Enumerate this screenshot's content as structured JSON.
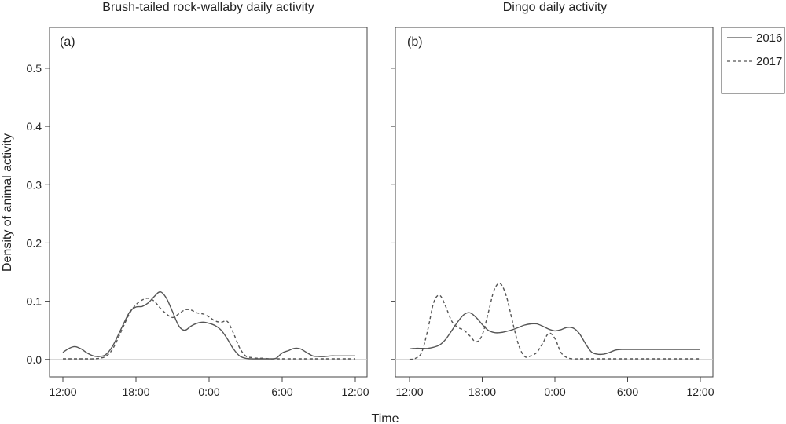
{
  "chart_data": [
    {
      "type": "line",
      "panel_tag": "(a)",
      "title": "Brush-tailed rock-wallaby daily activity",
      "xlabel": "Time",
      "ylabel": "Density of animal activity",
      "x_ticks": [
        "12:00",
        "18:00",
        "0:00",
        "6:00",
        "12:00"
      ],
      "y_ticks": [
        "0.0",
        "0.1",
        "0.2",
        "0.3",
        "0.4",
        "0.5"
      ],
      "xlim": [
        0,
        24
      ],
      "ylim": [
        -0.03,
        0.57
      ],
      "x": [
        0,
        0.5,
        1,
        1.5,
        2,
        2.5,
        3,
        3.5,
        4,
        4.5,
        5,
        5.5,
        6,
        6.5,
        7,
        7.5,
        8,
        8.5,
        9,
        9.5,
        10,
        10.5,
        11,
        11.5,
        12,
        12.5,
        13,
        13.5,
        14,
        14.5,
        15,
        15.5,
        16,
        16.5,
        17,
        17.5,
        18,
        18.5,
        19,
        19.5,
        20,
        20.5,
        21,
        21.5,
        22,
        22.5,
        23,
        23.5,
        24
      ],
      "series": [
        {
          "name": "2016",
          "style": "solid",
          "values": [
            0.012,
            0.019,
            0.022,
            0.018,
            0.011,
            0.006,
            0.005,
            0.008,
            0.02,
            0.04,
            0.062,
            0.082,
            0.09,
            0.091,
            0.097,
            0.108,
            0.116,
            0.105,
            0.082,
            0.058,
            0.05,
            0.057,
            0.062,
            0.064,
            0.062,
            0.058,
            0.05,
            0.035,
            0.018,
            0.006,
            0.002,
            0.001,
            0.001,
            0.001,
            0.001,
            0.002,
            0.011,
            0.015,
            0.019,
            0.018,
            0.012,
            0.006,
            0.005,
            0.005,
            0.006,
            0.006,
            0.006,
            0.006,
            0.006
          ]
        },
        {
          "name": "2017",
          "style": "dashed",
          "values": [
            0.001,
            0.001,
            0.001,
            0.001,
            0.001,
            0.001,
            0.002,
            0.005,
            0.015,
            0.035,
            0.058,
            0.08,
            0.094,
            0.102,
            0.105,
            0.1,
            0.088,
            0.078,
            0.072,
            0.078,
            0.085,
            0.085,
            0.08,
            0.078,
            0.073,
            0.066,
            0.064,
            0.065,
            0.045,
            0.02,
            0.006,
            0.003,
            0.002,
            0.002,
            0.001,
            0.001,
            0.001,
            0.001,
            0.001,
            0.001,
            0.001,
            0.001,
            0.001,
            0.001,
            0.001,
            0.001,
            0.001,
            0.001,
            0.001
          ]
        }
      ]
    },
    {
      "type": "line",
      "panel_tag": "(b)",
      "title": "Dingo daily activity",
      "xlabel": "Time",
      "ylabel": "",
      "x_ticks": [
        "12:00",
        "18:00",
        "0:00",
        "6:00",
        "12:00"
      ],
      "y_ticks": [],
      "xlim": [
        0,
        24
      ],
      "ylim": [
        -0.03,
        0.57
      ],
      "x": [
        0,
        0.5,
        1,
        1.5,
        2,
        2.5,
        3,
        3.5,
        4,
        4.5,
        5,
        5.5,
        6,
        6.5,
        7,
        7.5,
        8,
        8.5,
        9,
        9.5,
        10,
        10.5,
        11,
        11.5,
        12,
        12.5,
        13,
        13.5,
        14,
        14.5,
        15,
        15.5,
        16,
        16.5,
        17,
        17.5,
        18,
        18.5,
        19,
        19.5,
        20,
        20.5,
        21,
        21.5,
        22,
        22.5,
        23,
        23.5,
        24
      ],
      "series": [
        {
          "name": "2016",
          "style": "solid",
          "values": [
            0.018,
            0.019,
            0.019,
            0.019,
            0.021,
            0.025,
            0.035,
            0.05,
            0.065,
            0.077,
            0.08,
            0.072,
            0.06,
            0.05,
            0.046,
            0.046,
            0.048,
            0.051,
            0.055,
            0.059,
            0.061,
            0.061,
            0.057,
            0.052,
            0.049,
            0.051,
            0.055,
            0.054,
            0.045,
            0.028,
            0.013,
            0.009,
            0.009,
            0.012,
            0.016,
            0.017,
            0.017,
            0.017,
            0.017,
            0.017,
            0.017,
            0.017,
            0.017,
            0.017,
            0.017,
            0.017,
            0.017,
            0.017,
            0.017
          ]
        },
        {
          "name": "2017",
          "style": "dashed",
          "values": [
            0.0,
            0.002,
            0.012,
            0.05,
            0.098,
            0.11,
            0.09,
            0.065,
            0.055,
            0.05,
            0.04,
            0.03,
            0.042,
            0.08,
            0.12,
            0.13,
            0.108,
            0.065,
            0.025,
            0.005,
            0.006,
            0.012,
            0.028,
            0.045,
            0.036,
            0.012,
            0.003,
            0.001,
            0.001,
            0.001,
            0.001,
            0.001,
            0.001,
            0.001,
            0.001,
            0.001,
            0.001,
            0.001,
            0.001,
            0.001,
            0.001,
            0.001,
            0.001,
            0.001,
            0.001,
            0.001,
            0.001,
            0.001,
            0.001
          ]
        }
      ]
    }
  ],
  "legend": {
    "items": [
      {
        "label": "2016",
        "style": "solid"
      },
      {
        "label": "2017",
        "style": "dashed"
      }
    ]
  },
  "colors": {
    "line": "#555555",
    "axis": "#444444",
    "baseline": "#cccccc"
  }
}
